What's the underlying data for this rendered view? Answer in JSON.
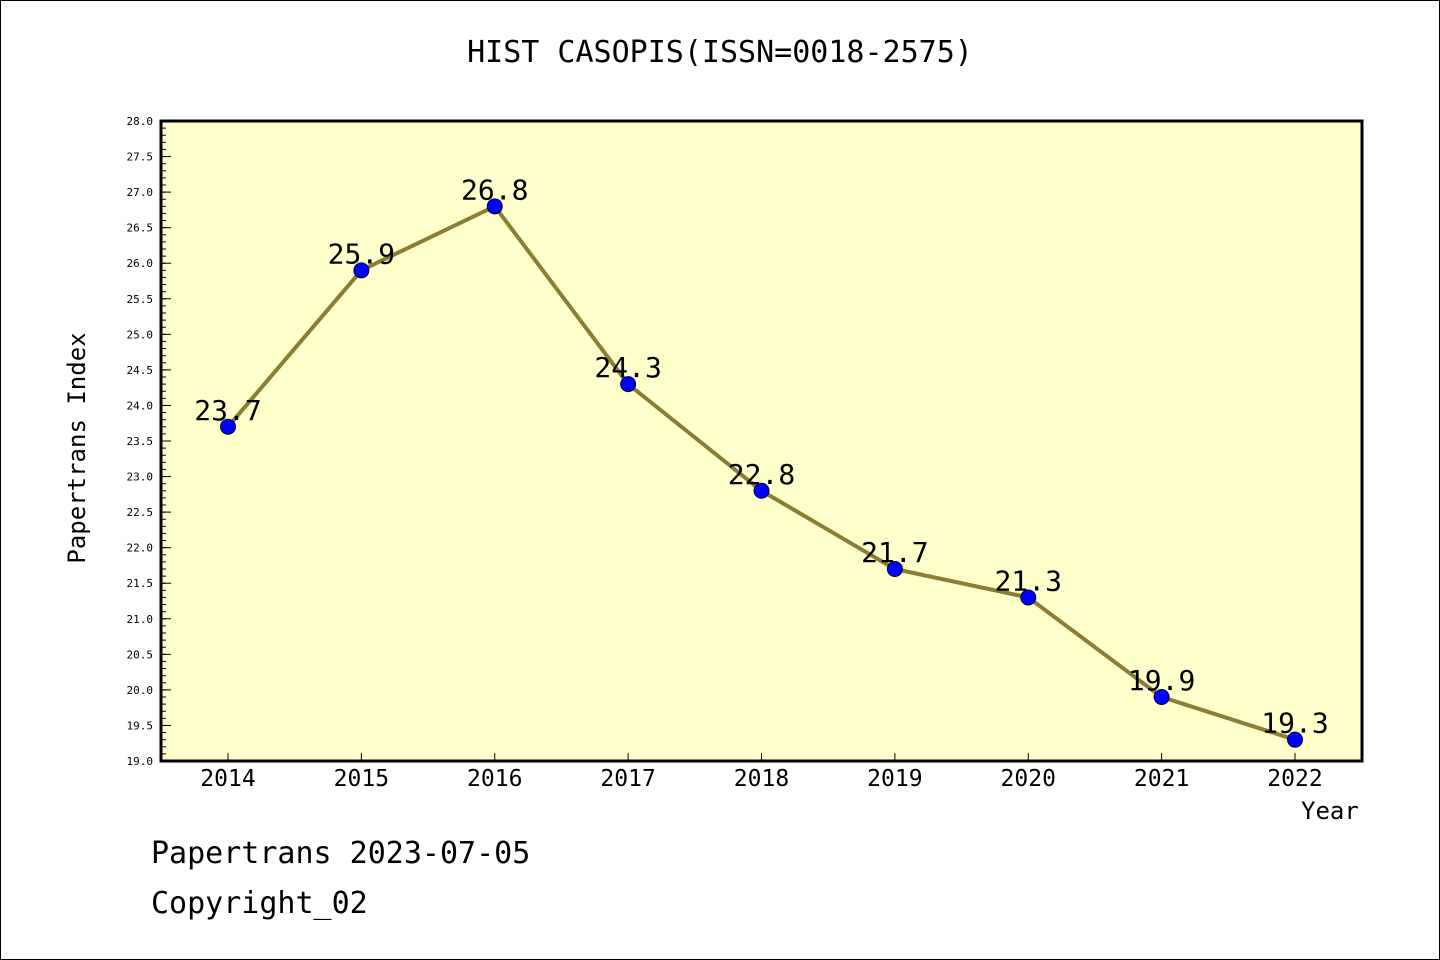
{
  "colors": {
    "plot_background": "#ffffcc",
    "line": "#8b7d35",
    "marker": "#0000ff"
  },
  "chart_data": {
    "type": "line",
    "title": "HIST CASOPIS(ISSN=0018-2575)",
    "xlabel": "Year",
    "ylabel": "Papertrans Index",
    "categories": [
      "2014",
      "2015",
      "2016",
      "2017",
      "2018",
      "2019",
      "2020",
      "2021",
      "2022"
    ],
    "series": [
      {
        "values": [
          23.7,
          25.9,
          26.8,
          24.3,
          22.8,
          21.7,
          21.3,
          19.9,
          19.3
        ]
      }
    ],
    "data_labels": [
      "23.7",
      "25.9",
      "26.8",
      "24.3",
      "22.8",
      "21.7",
      "21.3",
      "19.9",
      "19.3"
    ],
    "ylim": [
      19.0,
      28.0
    ],
    "yticks": [
      "19.0",
      "19.5",
      "20.0",
      "20.5",
      "21.0",
      "21.5",
      "22.0",
      "22.5",
      "23.0",
      "23.5",
      "24.0",
      "24.5",
      "25.0",
      "25.5",
      "26.0",
      "26.5",
      "27.0",
      "27.5",
      "28.0"
    ],
    "grid": false,
    "legend": "none"
  },
  "footer": {
    "line1": "Papertrans 2023-07-05",
    "line2": "Copyright_02"
  }
}
